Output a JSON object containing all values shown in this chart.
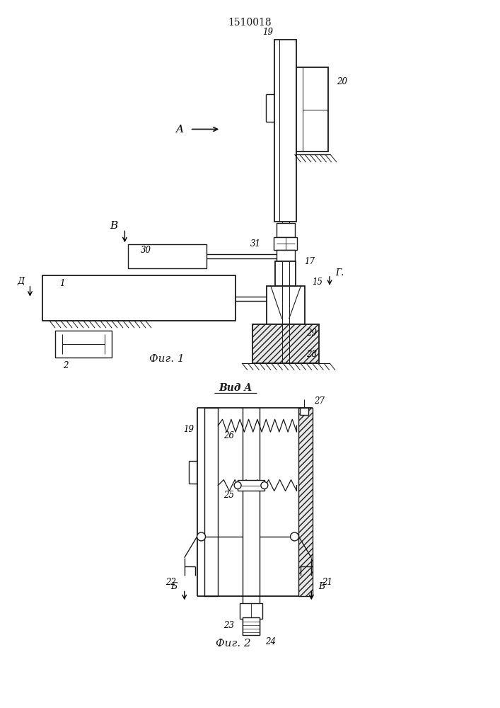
{
  "title": "1510018",
  "fig1_caption": "Фиг. 1",
  "fig2_caption": "Фиг. 2",
  "fig2_title": "Вид A",
  "bg_color": "#ffffff",
  "line_color": "#1a1a1a",
  "font_size_title": 10,
  "font_size_label": 8.5,
  "font_size_caption": 11
}
